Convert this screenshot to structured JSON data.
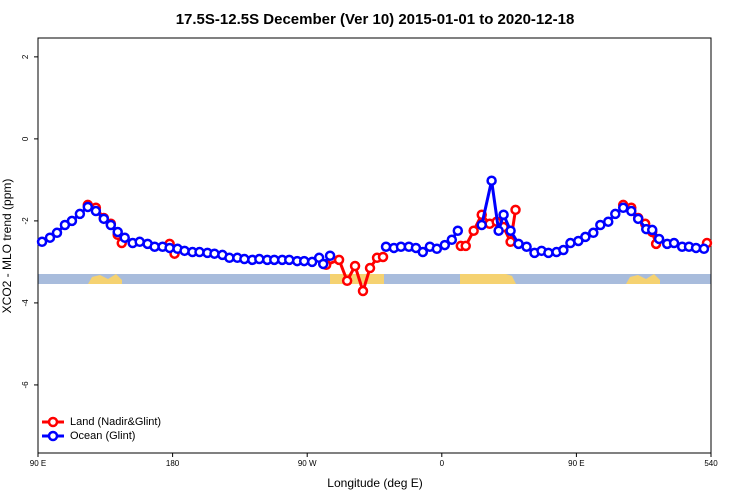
{
  "chart_data": {
    "type": "line",
    "title": "17.5S-12.5S December (Ver 10)   2015-01-01 to 2020-12-18",
    "x_label": "Longitude (deg E)",
    "y_label": "XCO2 - MLO trend (ppm)",
    "xlim": [
      90,
      540
    ],
    "ylim": [
      -7.66,
      2.46
    ],
    "xticks": [
      {
        "value": 90,
        "label": "90 E"
      },
      180,
      {
        "value": 270,
        "label": "90 W"
      },
      {
        "value": 360,
        "label": "0"
      },
      {
        "value": 450,
        "label": "90 E"
      },
      540
    ],
    "yticks": [
      2,
      0,
      -2,
      -4,
      -6
    ],
    "legend": "bottom-left",
    "series": [
      {
        "name": "Land (Nadir&Glint)",
        "color": "#ff0000",
        "x": [
          123.3,
          128.7,
          134,
          138.7,
          143.3,
          146,
          null,
          178,
          181.3,
          null,
          282.7,
          291.3,
          296.7,
          302,
          307.3,
          312,
          316.7,
          320.7,
          null,
          372.7,
          376,
          381.3,
          386.7,
          392,
          396.7,
          401.3,
          406,
          409.3,
          null,
          481.3,
          486.7,
          491.3,
          496,
          500.7,
          503.3,
          null,
          537.3
        ],
        "values": [
          -1.61,
          -1.68,
          -1.93,
          -2.07,
          -2.34,
          -2.54,
          null,
          -2.56,
          -2.8,
          null,
          -3.07,
          -2.95,
          -3.46,
          -3.1,
          -3.71,
          -3.15,
          -2.9,
          -2.88,
          null,
          -2.61,
          -2.61,
          -2.24,
          -1.85,
          -2.07,
          -2.02,
          -2.15,
          -2.51,
          -1.73,
          null,
          -1.61,
          -1.68,
          -1.93,
          -2.07,
          -2.27,
          -2.56,
          null,
          -2.54
        ]
      },
      {
        "name": "Ocean (Glint)",
        "color": "#0000ff",
        "x": [
          92.7,
          98,
          102.7,
          108,
          112.7,
          118,
          123.3,
          128.7,
          134,
          138.7,
          143.3,
          148,
          153.3,
          158,
          163.3,
          168,
          173.3,
          178,
          183.3,
          188,
          193.3,
          198,
          203.3,
          208,
          213.3,
          218,
          223.3,
          228,
          233.3,
          238,
          243.3,
          248,
          253.3,
          258,
          263.3,
          268,
          273.3,
          278,
          280.7,
          285.3,
          null,
          322.7,
          328,
          332.7,
          338,
          342.7,
          347.3,
          352,
          356.7,
          362,
          366.7,
          370.7,
          null,
          386.7,
          393.3,
          398,
          401.3,
          406,
          411.3,
          416.7,
          422,
          426.7,
          431.3,
          436.7,
          441.3,
          446,
          451.3,
          456,
          461.3,
          466,
          471.3,
          476,
          481.3,
          486.7,
          491.3,
          496.7,
          500.7,
          505.3,
          510.7,
          515.3,
          520.7,
          525.3,
          530,
          535.3
        ],
        "values": [
          -2.51,
          -2.41,
          -2.29,
          -2.1,
          -2.0,
          -1.83,
          -1.66,
          -1.76,
          -1.95,
          -2.1,
          -2.27,
          -2.41,
          -2.54,
          -2.51,
          -2.56,
          -2.63,
          -2.63,
          -2.66,
          -2.68,
          -2.73,
          -2.76,
          -2.76,
          -2.78,
          -2.8,
          -2.83,
          -2.9,
          -2.9,
          -2.93,
          -2.95,
          -2.93,
          -2.95,
          -2.95,
          -2.95,
          -2.95,
          -2.98,
          -2.98,
          -3.0,
          -2.9,
          -3.05,
          -2.85,
          null,
          -2.63,
          -2.66,
          -2.63,
          -2.63,
          -2.66,
          -2.76,
          -2.63,
          -2.68,
          -2.59,
          -2.46,
          -2.24,
          null,
          -2.1,
          -1.02,
          -2.24,
          -1.85,
          -2.24,
          -2.56,
          -2.63,
          -2.78,
          -2.73,
          -2.78,
          -2.76,
          -2.71,
          -2.54,
          -2.49,
          -2.39,
          -2.29,
          -2.1,
          -2.02,
          -1.83,
          -1.68,
          -1.76,
          -1.95,
          -2.2,
          -2.22,
          -2.44,
          -2.56,
          -2.54,
          -2.63,
          -2.63,
          -2.66,
          -2.68
        ]
      }
    ]
  }
}
